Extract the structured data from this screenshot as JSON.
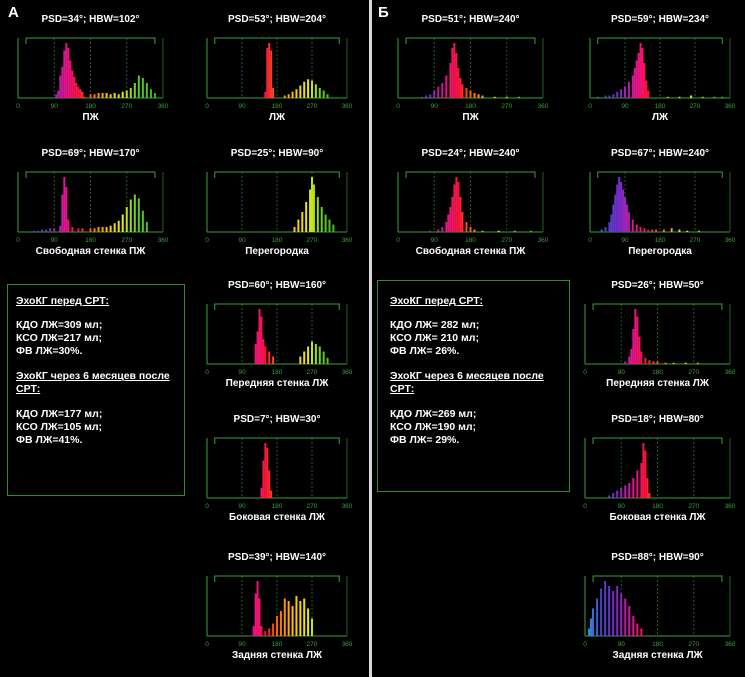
{
  "panels": [
    {
      "letter": "А"
    },
    {
      "letter": "Б"
    }
  ],
  "axis_ticks": [
    "0",
    "90",
    "180",
    "270",
    "360"
  ],
  "infoboxes": [
    {
      "before_title": "ЭхоКГ перед СРТ:",
      "before_lines": [
        "КДО ЛЖ=309 мл;",
        "КСО ЛЖ=217 мл;",
        "ФВ ЛЖ=30%."
      ],
      "after_title_1": "ЭхоКГ через 6 месяцев после",
      "after_title_2": "СРТ:",
      "after_lines": [
        "КДО ЛЖ=177 мл;",
        "КСО ЛЖ=105 мл;",
        "ФВ ЛЖ=41%."
      ]
    },
    {
      "before_title": "ЭхоКГ перед СРТ:",
      "before_lines": [
        "КДО ЛЖ= 282 мл;",
        "КСО ЛЖ= 210 мл;",
        "ФВ ЛЖ= 26%."
      ],
      "after_title_1": "ЭхоКГ через 6 месяцев после",
      "after_title_2": "СРТ:",
      "after_lines": [
        "КДО ЛЖ=269 мл;",
        "КСО ЛЖ=190 мл;",
        "ФВ ЛЖ= 29%."
      ]
    }
  ],
  "chart_data": [
    {
      "type": "bar",
      "title": "PSD=34°; HBW=102°",
      "xlabel": "ПЖ",
      "xlim": [
        0,
        360
      ],
      "peak_small": [
        [
          125,
          3
        ],
        [
          165,
          1
        ]
      ],
      "peak_main": [
        [
          95,
          3
        ],
        [
          100,
          6
        ],
        [
          105,
          18
        ],
        [
          110,
          25
        ],
        [
          115,
          38
        ],
        [
          120,
          44
        ],
        [
          125,
          40
        ],
        [
          130,
          30
        ],
        [
          135,
          22
        ],
        [
          140,
          17
        ],
        [
          145,
          12
        ],
        [
          150,
          9
        ],
        [
          155,
          7
        ],
        [
          160,
          5
        ]
      ],
      "peak_green": [
        [
          180,
          3
        ],
        [
          190,
          3
        ],
        [
          200,
          4
        ],
        [
          210,
          4
        ],
        [
          220,
          4
        ],
        [
          230,
          3
        ],
        [
          240,
          4
        ],
        [
          250,
          3
        ],
        [
          260,
          5
        ],
        [
          270,
          6
        ],
        [
          280,
          8
        ],
        [
          290,
          12
        ],
        [
          300,
          18
        ],
        [
          310,
          16
        ],
        [
          320,
          12
        ],
        [
          330,
          7
        ],
        [
          340,
          4
        ]
      ]
    },
    {
      "type": "bar",
      "title": "PSD=53°; HBW=204°",
      "xlabel": "ЛЖ",
      "xlim": [
        0,
        360
      ],
      "peak_main": [
        [
          150,
          5
        ],
        [
          155,
          40
        ],
        [
          160,
          44
        ],
        [
          165,
          38
        ],
        [
          170,
          8
        ]
      ],
      "peak_green": [
        [
          200,
          2
        ],
        [
          210,
          3
        ],
        [
          220,
          5
        ],
        [
          230,
          7
        ],
        [
          240,
          10
        ],
        [
          250,
          13
        ],
        [
          260,
          15
        ],
        [
          270,
          14
        ],
        [
          280,
          11
        ],
        [
          290,
          8
        ],
        [
          300,
          6
        ],
        [
          310,
          3
        ]
      ]
    },
    {
      "type": "bar",
      "title": "PSD=51°; HBW=240°",
      "xlabel": "ПЖ",
      "xlim": [
        0,
        360
      ],
      "peak_main": [
        [
          60,
          1
        ],
        [
          70,
          2
        ],
        [
          80,
          3
        ],
        [
          90,
          6
        ],
        [
          100,
          9
        ],
        [
          110,
          12
        ],
        [
          120,
          18
        ],
        [
          130,
          28
        ],
        [
          135,
          40
        ],
        [
          140,
          44
        ],
        [
          145,
          36
        ],
        [
          150,
          24
        ],
        [
          155,
          16
        ],
        [
          160,
          11
        ],
        [
          170,
          8
        ],
        [
          180,
          6
        ],
        [
          190,
          4
        ],
        [
          200,
          3
        ],
        [
          210,
          2
        ]
      ],
      "peak_green": [
        [
          240,
          1
        ],
        [
          270,
          1
        ],
        [
          300,
          1
        ]
      ]
    },
    {
      "type": "bar",
      "title": "PSD=59°; HBW=234°",
      "xlabel": "ЛЖ",
      "xlim": [
        0,
        360
      ],
      "peak_main": [
        [
          20,
          1
        ],
        [
          40,
          2
        ],
        [
          50,
          2
        ],
        [
          60,
          3
        ],
        [
          70,
          5
        ],
        [
          80,
          7
        ],
        [
          90,
          9
        ],
        [
          100,
          13
        ],
        [
          110,
          18
        ],
        [
          115,
          24
        ],
        [
          120,
          30
        ],
        [
          125,
          36
        ],
        [
          130,
          44
        ],
        [
          135,
          40
        ],
        [
          140,
          28
        ],
        [
          145,
          14
        ],
        [
          150,
          6
        ]
      ],
      "peak_green": [
        [
          200,
          1
        ],
        [
          230,
          1
        ],
        [
          260,
          2
        ],
        [
          290,
          1
        ],
        [
          320,
          1
        ],
        [
          340,
          1
        ]
      ]
    },
    {
      "type": "bar",
      "title": "PSD=69°; HBW=170°",
      "xlabel": "Свободная стенка ПЖ",
      "xlim": [
        0,
        360
      ],
      "peak_main": [
        [
          40,
          1
        ],
        [
          50,
          1
        ],
        [
          60,
          2
        ],
        [
          70,
          2
        ],
        [
          80,
          3
        ],
        [
          90,
          3
        ],
        [
          105,
          5
        ],
        [
          110,
          30
        ],
        [
          115,
          44
        ],
        [
          120,
          36
        ],
        [
          125,
          10
        ],
        [
          135,
          4
        ],
        [
          150,
          3
        ],
        [
          160,
          3
        ]
      ],
      "peak_green": [
        [
          180,
          3
        ],
        [
          190,
          3
        ],
        [
          200,
          4
        ],
        [
          210,
          4
        ],
        [
          220,
          4
        ],
        [
          230,
          5
        ],
        [
          240,
          7
        ],
        [
          250,
          9
        ],
        [
          260,
          14
        ],
        [
          270,
          20
        ],
        [
          280,
          26
        ],
        [
          290,
          30
        ],
        [
          300,
          27
        ],
        [
          310,
          17
        ],
        [
          320,
          8
        ]
      ]
    },
    {
      "type": "bar",
      "title": "PSD=25°; HBW=90°",
      "xlabel": "Перегородка",
      "xlim": [
        0,
        360
      ],
      "peak_main": [
        [
          225,
          4
        ],
        [
          235,
          10
        ],
        [
          245,
          16
        ],
        [
          255,
          24
        ],
        [
          265,
          34
        ],
        [
          270,
          44
        ],
        [
          275,
          38
        ],
        [
          285,
          28
        ],
        [
          295,
          20
        ],
        [
          305,
          14
        ],
        [
          315,
          10
        ],
        [
          325,
          6
        ]
      ]
    },
    {
      "type": "bar",
      "title": "PSD=24°; HBW=240°",
      "xlabel": "Свободная стенка ПЖ",
      "xlim": [
        0,
        360
      ],
      "peak_main": [
        [
          80,
          1
        ],
        [
          100,
          2
        ],
        [
          110,
          4
        ],
        [
          120,
          8
        ],
        [
          125,
          14
        ],
        [
          130,
          20
        ],
        [
          135,
          28
        ],
        [
          140,
          38
        ],
        [
          145,
          44
        ],
        [
          150,
          40
        ],
        [
          155,
          28
        ],
        [
          160,
          16
        ],
        [
          170,
          8
        ],
        [
          180,
          4
        ],
        [
          190,
          2
        ],
        [
          210,
          1
        ]
      ],
      "peak_green": [
        [
          250,
          1
        ],
        [
          290,
          1
        ],
        [
          330,
          1
        ]
      ]
    },
    {
      "type": "bar",
      "title": "PSD=67°; HBW=240°",
      "xlabel": "Перегородка",
      "xlim": [
        0,
        360
      ],
      "peak_main": [
        [
          30,
          2
        ],
        [
          40,
          4
        ],
        [
          50,
          8
        ],
        [
          55,
          14
        ],
        [
          60,
          22
        ],
        [
          65,
          30
        ],
        [
          70,
          38
        ],
        [
          75,
          44
        ],
        [
          80,
          40
        ],
        [
          85,
          34
        ],
        [
          90,
          28
        ],
        [
          95,
          22
        ],
        [
          100,
          16
        ],
        [
          110,
          10
        ],
        [
          120,
          6
        ],
        [
          130,
          4
        ],
        [
          140,
          3
        ],
        [
          150,
          2
        ],
        [
          160,
          2
        ],
        [
          170,
          2
        ],
        [
          190,
          2
        ],
        [
          210,
          3
        ],
        [
          230,
          2
        ],
        [
          250,
          1
        ],
        [
          280,
          1
        ]
      ]
    },
    {
      "type": "bar",
      "title": "PSD=60°; HBW=160°",
      "xlabel": "Передняя стенка ЛЖ",
      "xlim": [
        0,
        360
      ],
      "peak_main": [
        [
          125,
          16
        ],
        [
          130,
          26
        ],
        [
          135,
          44
        ],
        [
          140,
          38
        ],
        [
          145,
          20
        ],
        [
          150,
          14
        ],
        [
          160,
          10
        ],
        [
          170,
          6
        ]
      ],
      "peak_green": [
        [
          240,
          6
        ],
        [
          250,
          10
        ],
        [
          260,
          14
        ],
        [
          270,
          18
        ],
        [
          280,
          16
        ],
        [
          290,
          14
        ],
        [
          300,
          10
        ],
        [
          310,
          5
        ]
      ]
    },
    {
      "type": "bar",
      "title": "PSD=26°; HBW=50°",
      "xlabel": "Передняя стенка ЛЖ",
      "xlim": [
        0,
        360
      ],
      "peak_main": [
        [
          100,
          2
        ],
        [
          110,
          6
        ],
        [
          115,
          12
        ],
        [
          120,
          28
        ],
        [
          125,
          44
        ],
        [
          130,
          38
        ],
        [
          135,
          22
        ],
        [
          140,
          10
        ],
        [
          150,
          5
        ],
        [
          160,
          3
        ],
        [
          170,
          2
        ],
        [
          180,
          2
        ],
        [
          200,
          1
        ],
        [
          220,
          1
        ],
        [
          250,
          1
        ],
        [
          280,
          1
        ]
      ]
    },
    {
      "type": "bar",
      "title": "PSD=7°; HBW=30°",
      "xlabel": "Боковая стенка ЛЖ",
      "xlim": [
        0,
        360
      ],
      "peak_main": [
        [
          140,
          8
        ],
        [
          145,
          30
        ],
        [
          150,
          44
        ],
        [
          155,
          40
        ],
        [
          160,
          22
        ],
        [
          165,
          6
        ]
      ]
    },
    {
      "type": "bar",
      "title": "PSD=18°; HBW=80°",
      "xlabel": "Боковая стенка ЛЖ",
      "xlim": [
        0,
        360
      ],
      "peak_main": [
        [
          60,
          2
        ],
        [
          70,
          4
        ],
        [
          80,
          6
        ],
        [
          90,
          8
        ],
        [
          100,
          10
        ],
        [
          110,
          12
        ],
        [
          120,
          16
        ],
        [
          130,
          22
        ],
        [
          140,
          28
        ],
        [
          145,
          44
        ],
        [
          150,
          38
        ],
        [
          155,
          16
        ],
        [
          160,
          4
        ]
      ]
    },
    {
      "type": "bar",
      "title": "PSD=39°; HBW=140°",
      "xlabel": "Задняя стенка ЛЖ",
      "xlim": [
        0,
        360
      ],
      "peak_main": [
        [
          120,
          8
        ],
        [
          125,
          34
        ],
        [
          130,
          44
        ],
        [
          135,
          30
        ],
        [
          140,
          8
        ],
        [
          150,
          4
        ],
        [
          160,
          6
        ],
        [
          170,
          10
        ],
        [
          180,
          16
        ],
        [
          190,
          20
        ],
        [
          200,
          30
        ],
        [
          210,
          28
        ],
        [
          220,
          24
        ],
        [
          230,
          32
        ],
        [
          240,
          28
        ],
        [
          250,
          30
        ],
        [
          260,
          22
        ],
        [
          270,
          14
        ]
      ]
    },
    {
      "type": "bar",
      "title": "PSD=88°; HBW=90°",
      "xlabel": "Задняя стенка ЛЖ",
      "xlim": [
        0,
        360
      ],
      "peak_main": [
        [
          10,
          6
        ],
        [
          15,
          14
        ],
        [
          20,
          22
        ],
        [
          30,
          30
        ],
        [
          40,
          38
        ],
        [
          50,
          44
        ],
        [
          60,
          40
        ],
        [
          70,
          36
        ],
        [
          80,
          40
        ],
        [
          90,
          34
        ],
        [
          100,
          30
        ],
        [
          110,
          24
        ],
        [
          120,
          16
        ],
        [
          130,
          10
        ],
        [
          140,
          6
        ]
      ]
    }
  ],
  "colors": {
    "grid": "#1f5f1f",
    "axis": "#3aa03a",
    "hbw": "#3aa03a",
    "box_border": "#2f8f2f"
  }
}
